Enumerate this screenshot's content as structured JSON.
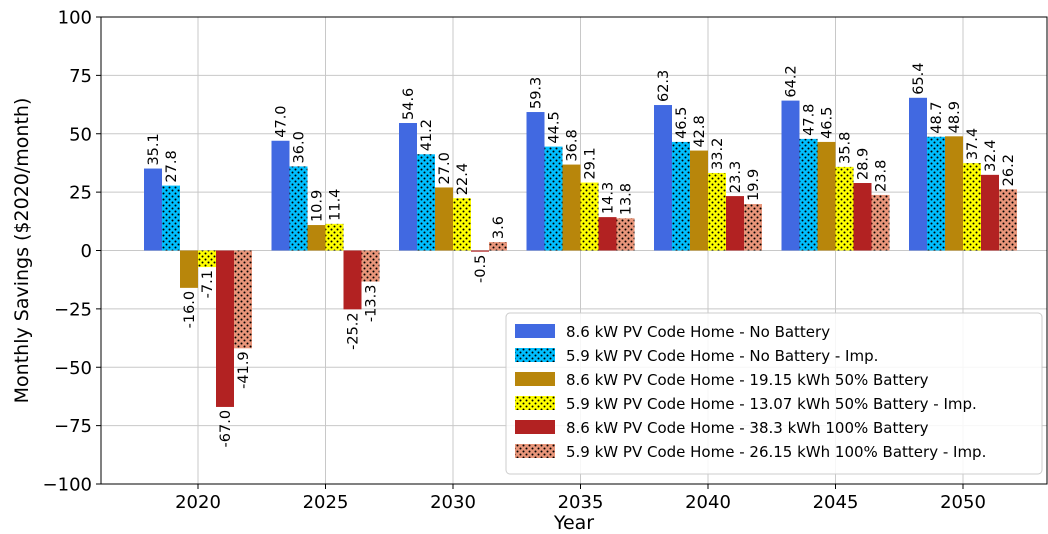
{
  "chart_data": {
    "type": "bar",
    "title": "",
    "xlabel": "Year",
    "ylabel": "Monthly Savings ($2020/month)",
    "ylim": [
      -100,
      100
    ],
    "yticks": [
      -100,
      -75,
      -50,
      -25,
      0,
      25,
      50,
      75,
      100
    ],
    "categories": [
      "2020",
      "2025",
      "2030",
      "2035",
      "2040",
      "2045",
      "2050"
    ],
    "grid": true,
    "legend_position": "bottom-right",
    "series": [
      {
        "name": "8.6 kW PV Code Home - No Battery",
        "color": "#4169e1",
        "pattern": "solid",
        "values": [
          35.1,
          47.0,
          54.6,
          59.3,
          62.3,
          64.2,
          65.4
        ]
      },
      {
        "name": "5.9 kW PV Code Home - No Battery - Imp.",
        "color": "#00bfff",
        "pattern": "dots",
        "values": [
          27.8,
          36.0,
          41.2,
          44.5,
          46.5,
          47.8,
          48.7
        ]
      },
      {
        "name": "8.6 kW PV Code Home - 19.15 kWh 50% Battery",
        "color": "#b8860b",
        "pattern": "solid",
        "values": [
          -16.0,
          10.9,
          27.0,
          36.8,
          42.8,
          46.5,
          48.9
        ]
      },
      {
        "name": "5.9 kW PV Code Home - 13.07 kWh 50% Battery - Imp.",
        "color": "#ffff00",
        "pattern": "dots",
        "values": [
          -7.1,
          11.4,
          22.4,
          29.1,
          33.2,
          35.8,
          37.4
        ]
      },
      {
        "name": "8.6 kW PV Code Home - 38.3 kWh 100% Battery",
        "color": "#b22222",
        "pattern": "solid",
        "values": [
          -67.0,
          -25.2,
          -0.5,
          14.3,
          23.3,
          28.9,
          32.4
        ]
      },
      {
        "name": "5.9 kW PV Code Home - 26.15 kWh 100% Battery - Imp.",
        "color": "#e9967a",
        "pattern": "dots",
        "values": [
          -41.9,
          -13.3,
          3.6,
          13.8,
          19.9,
          23.8,
          26.2
        ]
      }
    ]
  }
}
